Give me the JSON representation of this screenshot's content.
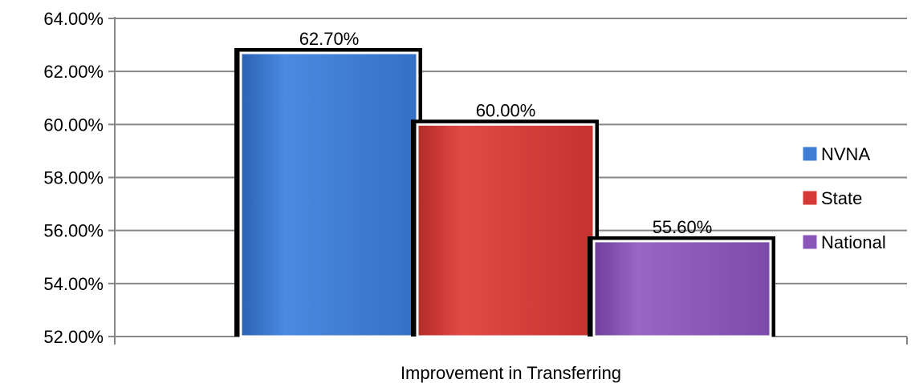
{
  "chart_data": {
    "type": "bar",
    "categories": [
      "Improvement in Transferring"
    ],
    "series": [
      {
        "name": "NVNA",
        "values": [
          62.7
        ],
        "label": "62.70%",
        "color": "#3d7dd6",
        "color_light": "#5f9ae8",
        "color_dark": "#2b62b3"
      },
      {
        "name": "State",
        "values": [
          60.0
        ],
        "label": "60.00%",
        "color": "#d63a36",
        "color_light": "#e55a55",
        "color_dark": "#b32a27"
      },
      {
        "name": "National",
        "values": [
          55.6
        ],
        "label": "55.60%",
        "color": "#8a55b8",
        "color_light": "#a173cc",
        "color_dark": "#6e3f9a"
      }
    ],
    "ylim": [
      52,
      64
    ],
    "yticks": [
      52,
      54,
      56,
      58,
      60,
      62,
      64
    ],
    "ytick_labels": [
      "52.00%",
      "54.00%",
      "56.00%",
      "58.00%",
      "60.00%",
      "62.00%",
      "64.00%"
    ],
    "grid": true,
    "legend_position": "right",
    "title": "",
    "xlabel": "",
    "ylabel": ""
  }
}
